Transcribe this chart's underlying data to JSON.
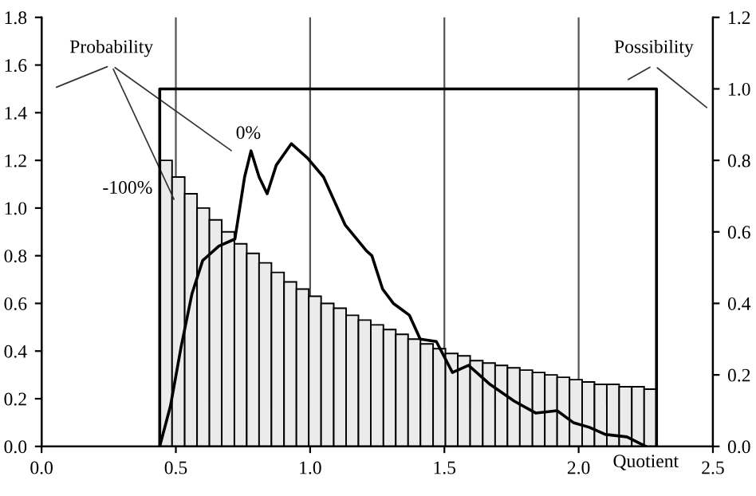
{
  "chart_data": {
    "type": "histogram",
    "series": [
      {
        "color": "#ebebeb",
        "bins": [
          0.44,
          0.486,
          0.533,
          0.579,
          0.625,
          0.671,
          0.718,
          0.764,
          0.81,
          0.856,
          0.903,
          0.949,
          0.995,
          1.041,
          1.088,
          1.134,
          1.18,
          1.226,
          1.273,
          1.319,
          1.365,
          1.411,
          1.458,
          1.504,
          1.55,
          1.596,
          1.643,
          1.689,
          1.735,
          1.781,
          1.828,
          1.874,
          1.92,
          1.966,
          2.013,
          2.059,
          2.105,
          2.151,
          2.198,
          2.244,
          2.29
        ],
        "values": [
          1.2,
          1.13,
          1.06,
          1.0,
          0.95,
          0.9,
          0.85,
          0.81,
          0.77,
          0.73,
          0.69,
          0.66,
          0.63,
          0.6,
          0.58,
          0.55,
          0.53,
          0.51,
          0.49,
          0.47,
          0.45,
          0.43,
          0.41,
          0.39,
          0.38,
          0.36,
          0.35,
          0.34,
          0.33,
          0.32,
          0.31,
          0.3,
          0.29,
          0.28,
          0.27,
          0.26,
          0.26,
          0.25,
          0.25,
          0.24
        ]
      },
      {
        "type": "line",
        "color": "#000000",
        "x": [
          0.44,
          0.48,
          0.52,
          0.56,
          0.6,
          0.66,
          0.72,
          0.756,
          0.78,
          0.81,
          0.84,
          0.874,
          0.93,
          0.99,
          1.05,
          1.13,
          1.21,
          1.23,
          1.27,
          1.31,
          1.37,
          1.41,
          1.47,
          1.53,
          1.59,
          1.67,
          1.76,
          1.84,
          1.92,
          1.98,
          2.04,
          2.1,
          2.18,
          2.25
        ],
        "values": [
          0,
          0.17,
          0.42,
          0.64,
          0.78,
          0.84,
          0.87,
          1.13,
          1.24,
          1.13,
          1.06,
          1.18,
          1.27,
          1.21,
          1.13,
          0.93,
          0.82,
          0.8,
          0.66,
          0.6,
          0.55,
          0.45,
          0.44,
          0.31,
          0.34,
          0.26,
          0.19,
          0.14,
          0.15,
          0.1,
          0.08,
          0.05,
          0.04,
          0
        ]
      },
      {
        "type": "line",
        "color": "#000000",
        "axis": "y2",
        "x": [
          0.44,
          0.44,
          2.29,
          2.29
        ],
        "values": [
          0,
          1.0,
          1.0,
          0
        ]
      }
    ],
    "xlabel": "Quotient",
    "annotations": [
      {
        "text": "Probability",
        "x": 0.5,
        "y": 1.02
      },
      {
        "text": "Possibility",
        "x": 2.17,
        "y": 1.53
      },
      "0%",
      "-100%"
    ],
    "xlim": [
      0.0,
      2.5
    ],
    "xticks": [
      {
        "value": 0.0,
        "label": "0.0"
      },
      {
        "value": 0.5,
        "label": "0.5"
      },
      {
        "value": 1.0,
        "label": "1.0"
      },
      {
        "value": 1.5,
        "label": "1.5"
      },
      {
        "value": 2.0,
        "label": "2.0"
      },
      {
        "value": 2.5,
        "label": "2.5"
      }
    ],
    "ylim": [
      0.0,
      1.8
    ],
    "yticks": [
      {
        "value": 0.0,
        "label": "0.0"
      },
      0.2,
      0.4,
      0.6,
      0.8,
      {
        "value": 1.0,
        "label": "1.0"
      },
      1.2,
      1.4,
      1.6,
      1.8
    ],
    "y2lim": [
      0.0,
      1.2
    ],
    "y2ticks": [
      {
        "value": 0.0,
        "label": "0.0"
      },
      0.2,
      0.4,
      0.6,
      0.8,
      {
        "value": 1.0,
        "label": "1.0"
      },
      1.2
    ],
    "grid": "x",
    "legend": false
  }
}
